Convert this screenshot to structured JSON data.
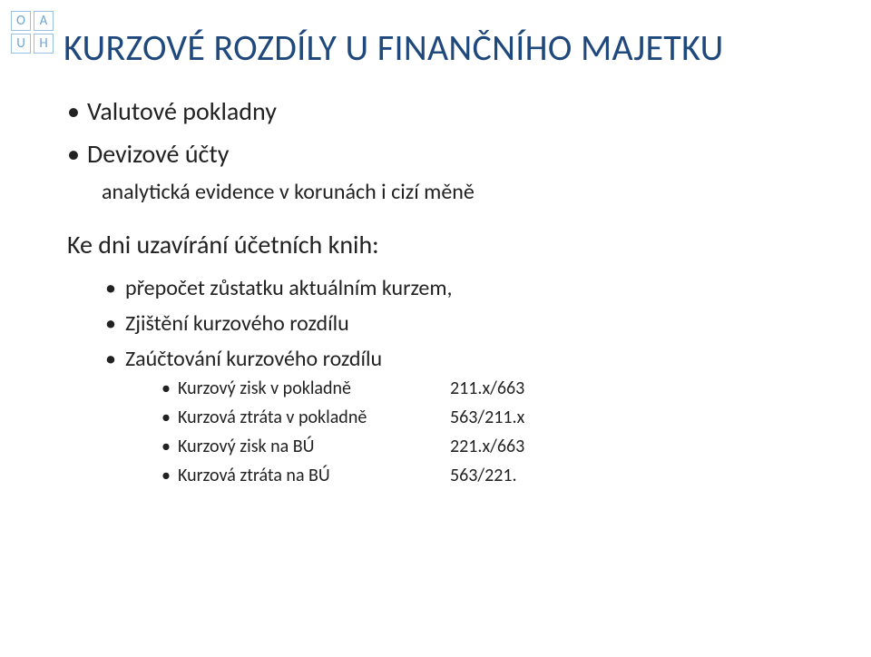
{
  "logo": {
    "top_left": "O",
    "top_right": "A",
    "bottom_left": "U",
    "bottom_right": "H",
    "border_color": "#9bbfe0",
    "text_color": "#6fa5d6"
  },
  "title": "KURZOVÉ ROZDÍLY U FINANČNÍHO MAJETKU",
  "title_color": "#1f497d",
  "bullets_lvl1": [
    "Valutové pokladny",
    "Devizové účty"
  ],
  "sub1": "analytická evidence v korunách i cizí měně",
  "section_label": "Ke dni uzavírání účetních knih:",
  "lvl2": [
    "přepočet zůstatku aktuálním kurzem,",
    "Zjištění kurzového rozdílu",
    "Zaúčtování kurzového rozdílu"
  ],
  "lvl3": [
    {
      "label": "Kurzový zisk v pokladně",
      "value": "211.x/663"
    },
    {
      "label": "Kurzová ztráta v pokladně",
      "value": "563/211.x"
    },
    {
      "label": "Kurzový zisk na BÚ",
      "value": "221.x/663"
    },
    {
      "label": "Kurzová ztráta na BÚ",
      "value": "563/221."
    }
  ],
  "text_color": "#222222",
  "background_color": "#ffffff"
}
